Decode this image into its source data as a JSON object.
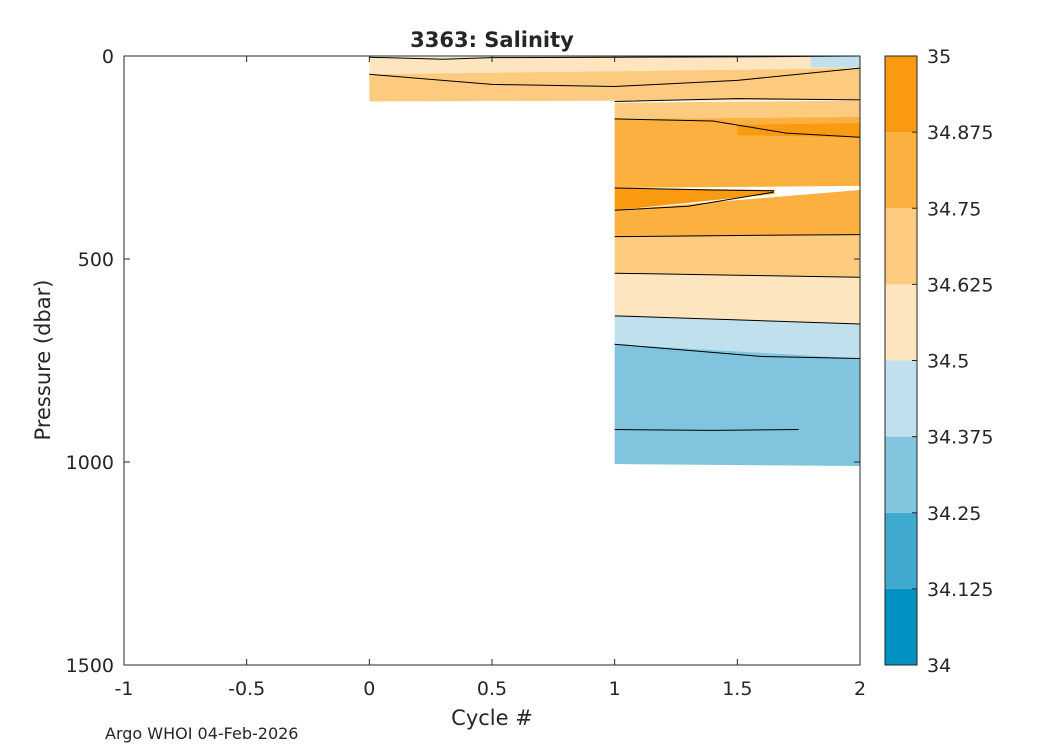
{
  "footer_text": "Argo WHOI 04-Feb-2026",
  "chart_data": {
    "type": "contourf",
    "title": "3363:  Salinity",
    "xlabel": "Cycle #",
    "ylabel": "Pressure (dbar)",
    "xlim": [
      -1,
      2
    ],
    "ylim": [
      0,
      1500
    ],
    "y_reversed": true,
    "xticks": [
      -1,
      -0.5,
      0,
      0.5,
      1,
      1.5,
      2
    ],
    "xtick_labels": [
      "-1",
      "-0.5",
      "0",
      "0.5",
      "1",
      "1.5",
      "2"
    ],
    "yticks": [
      0,
      500,
      1000,
      1500
    ],
    "ytick_labels": [
      "0",
      "500",
      "1000",
      "1500"
    ],
    "colorbar": {
      "levels": [
        34,
        34.125,
        34.25,
        34.375,
        34.5,
        34.625,
        34.75,
        34.875,
        35
      ],
      "tick_labels": [
        "34",
        "34.125",
        "34.25",
        "34.375",
        "34.5",
        "34.625",
        "34.75",
        "34.875",
        "35"
      ],
      "colors": [
        "#0092c0",
        "#40a9cf",
        "#80c4de",
        "#bfe0ec",
        "#fde6bf",
        "#fccb7f",
        "#fbb040",
        "#fa9a10"
      ]
    },
    "bands": [
      {
        "x": [
          0,
          2
        ],
        "top": [
          3,
          0
        ],
        "bottom": [
          45,
          30
        ],
        "value": 34.5625
      },
      {
        "x": [
          1.8,
          2
        ],
        "top": [
          0,
          0
        ],
        "bottom": [
          28,
          28
        ],
        "value": 34.4375
      },
      {
        "x": [
          0,
          2
        ],
        "top": [
          45,
          30
        ],
        "bottom": [
          112,
          108
        ],
        "value": 34.6875
      },
      {
        "x": [
          1,
          2
        ],
        "top": [
          115,
          110
        ],
        "bottom": [
          155,
          150
        ],
        "value": 34.6875
      },
      {
        "x": [
          1,
          2
        ],
        "top": [
          155,
          150
        ],
        "bottom": [
          325,
          320
        ],
        "value": 34.8125
      },
      {
        "x": [
          1.5,
          2
        ],
        "top": [
          170,
          165
        ],
        "bottom": [
          195,
          200
        ],
        "value": 34.9375
      },
      {
        "x": [
          1,
          1.65
        ],
        "top": [
          325,
          330
        ],
        "bottom": [
          380,
          340
        ],
        "value": 34.9375
      },
      {
        "x": [
          1,
          2
        ],
        "top": [
          380,
          330
        ],
        "bottom": [
          445,
          440
        ],
        "value": 34.8125
      },
      {
        "x": [
          1,
          2
        ],
        "top": [
          445,
          440
        ],
        "bottom": [
          535,
          545
        ],
        "value": 34.6875
      },
      {
        "x": [
          1,
          2
        ],
        "top": [
          535,
          545
        ],
        "bottom": [
          640,
          660
        ],
        "value": 34.5625
      },
      {
        "x": [
          1,
          2
        ],
        "top": [
          640,
          660
        ],
        "bottom": [
          710,
          745
        ],
        "value": 34.4375
      },
      {
        "x": [
          1,
          2
        ],
        "top": [
          710,
          745
        ],
        "bottom": [
          1005,
          1010
        ],
        "value": 34.3125
      }
    ],
    "contour_lines": [
      {
        "x": [
          0,
          0.3,
          0.5,
          1.0,
          1.6,
          2.0
        ],
        "y": [
          3,
          8,
          4,
          3,
          2,
          0
        ]
      },
      {
        "x": [
          0,
          0.3,
          0.5,
          1.0,
          1.5,
          2.0
        ],
        "y": [
          45,
          60,
          70,
          75,
          60,
          30
        ]
      },
      {
        "x": [
          1.0,
          1.5,
          2.0
        ],
        "y": [
          112,
          105,
          108
        ]
      },
      {
        "x": [
          1.0,
          1.4,
          1.7,
          2.0
        ],
        "y": [
          155,
          160,
          190,
          200
        ]
      },
      {
        "x": [
          1.0,
          1.4,
          1.65
        ],
        "y": [
          325,
          330,
          332
        ]
      },
      {
        "x": [
          1.0,
          1.3,
          1.65
        ],
        "y": [
          380,
          370,
          335
        ]
      },
      {
        "x": [
          1.0,
          1.5,
          2.0
        ],
        "y": [
          445,
          442,
          440
        ]
      },
      {
        "x": [
          1.0,
          1.5,
          2.0
        ],
        "y": [
          535,
          540,
          545
        ]
      },
      {
        "x": [
          1.0,
          1.5,
          2.0
        ],
        "y": [
          640,
          650,
          660
        ]
      },
      {
        "x": [
          1.0,
          1.3,
          1.6,
          2.0
        ],
        "y": [
          710,
          725,
          740,
          745
        ]
      },
      {
        "x": [
          1.0,
          1.4,
          1.75
        ],
        "y": [
          920,
          922,
          920
        ]
      }
    ]
  }
}
